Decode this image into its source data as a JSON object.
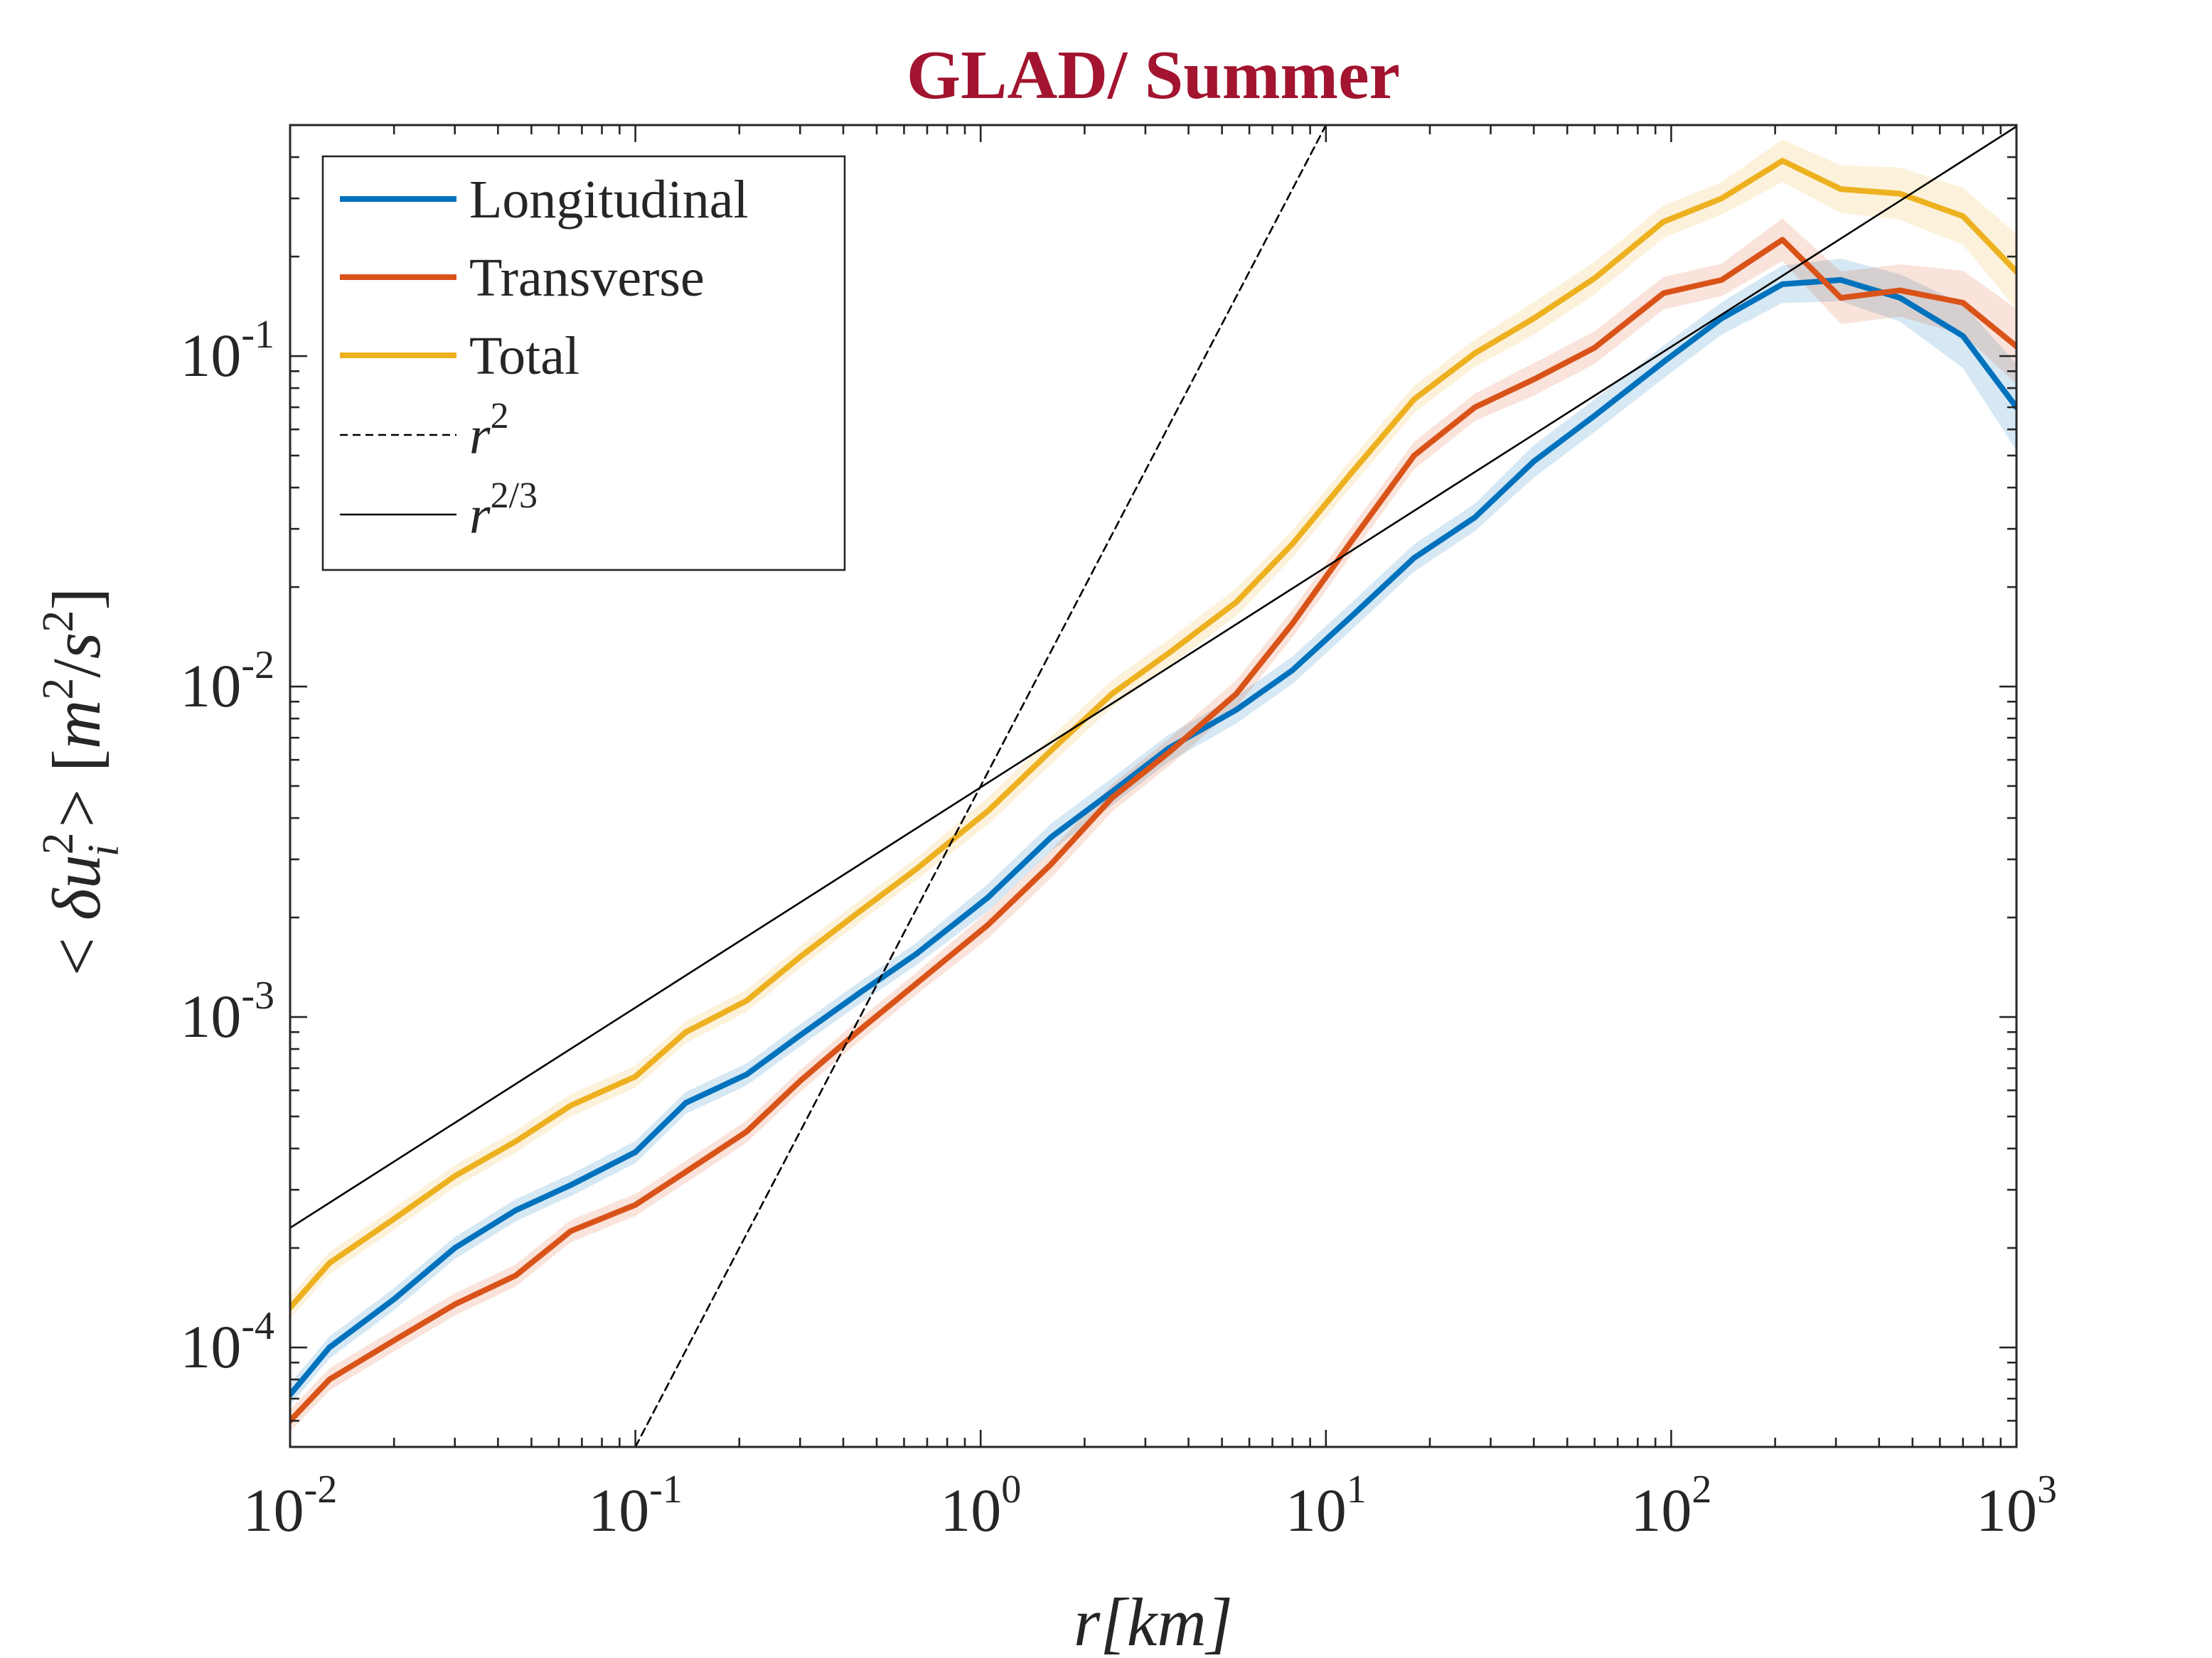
{
  "chart_data": {
    "type": "line",
    "title": "GLAD/ Summer",
    "xlabel": "r[km]",
    "ylabel": "< δu_i^2 > [m^2/s^2]",
    "xscale": "log",
    "yscale": "log",
    "xlim": [
      0.01,
      1000
    ],
    "ylim": [
      5e-05,
      0.5
    ],
    "x_ticks": [
      {
        "value": 0.01,
        "base": "10",
        "exp": "-2"
      },
      {
        "value": 0.1,
        "base": "10",
        "exp": "-1"
      },
      {
        "value": 1,
        "base": "10",
        "exp": "0"
      },
      {
        "value": 10,
        "base": "10",
        "exp": "1"
      },
      {
        "value": 100,
        "base": "10",
        "exp": "2"
      },
      {
        "value": 1000,
        "base": "10",
        "exp": "3"
      }
    ],
    "y_ticks": [
      {
        "value": 0.0001,
        "base": "10",
        "exp": "-4"
      },
      {
        "value": 0.001,
        "base": "10",
        "exp": "-3"
      },
      {
        "value": 0.01,
        "base": "10",
        "exp": "-2"
      },
      {
        "value": 0.1,
        "base": "10",
        "exp": "-1"
      }
    ],
    "grid": false,
    "legend_position": "top-left",
    "series": [
      {
        "name": "Longitudinal",
        "color": "#0072bd",
        "style": "solid",
        "x": [
          0.01,
          0.013,
          0.02,
          0.03,
          0.045,
          0.065,
          0.1,
          0.14,
          0.21,
          0.3,
          0.45,
          0.65,
          1.05,
          1.6,
          2.4,
          3.5,
          5.5,
          8,
          12,
          18,
          27,
          40,
          60,
          95,
          140,
          210,
          310,
          460,
          700,
          1000
        ],
        "y": [
          7.2e-05,
          0.0001,
          0.00014,
          0.0002,
          0.00026,
          0.00031,
          0.00039,
          0.00055,
          0.00067,
          0.00088,
          0.00119,
          0.00155,
          0.0023,
          0.0035,
          0.0048,
          0.0065,
          0.0085,
          0.0112,
          0.0165,
          0.0245,
          0.0325,
          0.048,
          0.066,
          0.096,
          0.13,
          0.165,
          0.17,
          0.15,
          0.115,
          0.07
        ],
        "band": [
          0.08,
          0.08,
          0.08,
          0.08,
          0.08,
          0.08,
          0.08,
          0.08,
          0.08,
          0.08,
          0.08,
          0.08,
          0.1,
          0.1,
          0.1,
          0.1,
          0.1,
          0.1,
          0.1,
          0.1,
          0.1,
          0.12,
          0.12,
          0.12,
          0.12,
          0.14,
          0.16,
          0.18,
          0.25,
          0.35
        ]
      },
      {
        "name": "Transverse",
        "color": "#d95319",
        "style": "solid",
        "x": [
          0.01,
          0.013,
          0.02,
          0.03,
          0.045,
          0.065,
          0.1,
          0.14,
          0.21,
          0.3,
          0.45,
          0.65,
          1.05,
          1.6,
          2.4,
          3.5,
          5.5,
          8,
          12,
          18,
          27,
          40,
          60,
          95,
          140,
          210,
          310,
          460,
          700,
          1000
        ],
        "y": [
          6e-05,
          8e-05,
          0.000105,
          0.000135,
          0.000165,
          0.000225,
          0.00027,
          0.00034,
          0.00045,
          0.00064,
          0.00092,
          0.00126,
          0.0019,
          0.0029,
          0.0046,
          0.0063,
          0.0095,
          0.0155,
          0.028,
          0.05,
          0.07,
          0.085,
          0.106,
          0.155,
          0.17,
          0.225,
          0.15,
          0.158,
          0.145,
          0.107
        ],
        "band": [
          0.08,
          0.08,
          0.08,
          0.08,
          0.08,
          0.08,
          0.08,
          0.08,
          0.08,
          0.08,
          0.08,
          0.08,
          0.1,
          0.1,
          0.1,
          0.1,
          0.1,
          0.1,
          0.1,
          0.1,
          0.1,
          0.12,
          0.12,
          0.12,
          0.12,
          0.16,
          0.2,
          0.2,
          0.25,
          0.3
        ]
      },
      {
        "name": "Total",
        "color": "#edb120",
        "style": "solid",
        "x": [
          0.01,
          0.013,
          0.02,
          0.03,
          0.045,
          0.065,
          0.1,
          0.14,
          0.21,
          0.3,
          0.45,
          0.65,
          1.05,
          1.6,
          2.4,
          3.5,
          5.5,
          8,
          12,
          18,
          27,
          40,
          60,
          95,
          140,
          210,
          310,
          460,
          700,
          1000
        ],
        "y": [
          0.000132,
          0.00018,
          0.000245,
          0.00033,
          0.00042,
          0.00054,
          0.00066,
          0.0009,
          0.00112,
          0.00152,
          0.0021,
          0.0028,
          0.0042,
          0.0064,
          0.0095,
          0.0126,
          0.018,
          0.027,
          0.045,
          0.074,
          0.102,
          0.13,
          0.172,
          0.255,
          0.3,
          0.39,
          0.32,
          0.31,
          0.265,
          0.18
        ],
        "band": [
          0.08,
          0.08,
          0.08,
          0.08,
          0.08,
          0.08,
          0.08,
          0.08,
          0.08,
          0.08,
          0.08,
          0.08,
          0.1,
          0.1,
          0.1,
          0.1,
          0.1,
          0.1,
          0.1,
          0.1,
          0.1,
          0.12,
          0.12,
          0.12,
          0.12,
          0.16,
          0.18,
          0.2,
          0.22,
          0.3
        ]
      },
      {
        "name": "r^2",
        "color": "#000000",
        "style": "dashed",
        "x": [
          0.1,
          10
        ],
        "y": [
          5e-05,
          0.5
        ]
      },
      {
        "name": "r^{2/3}",
        "color": "#000000",
        "style": "thin",
        "x": [
          0.01,
          1000
        ],
        "y": [
          0.00023,
          0.495
        ]
      }
    ]
  },
  "legend": {
    "items": [
      {
        "label": "Longitudinal",
        "style": "solid",
        "color": "#0072bd"
      },
      {
        "label": "Transverse",
        "style": "solid",
        "color": "#d95319"
      },
      {
        "label": "Total",
        "style": "solid",
        "color": "#edb120"
      },
      {
        "label": "r",
        "sup": "2",
        "style": "dashed",
        "color": "#000000"
      },
      {
        "label": "r",
        "sup": "2/3",
        "style": "thin",
        "color": "#000000"
      }
    ]
  }
}
